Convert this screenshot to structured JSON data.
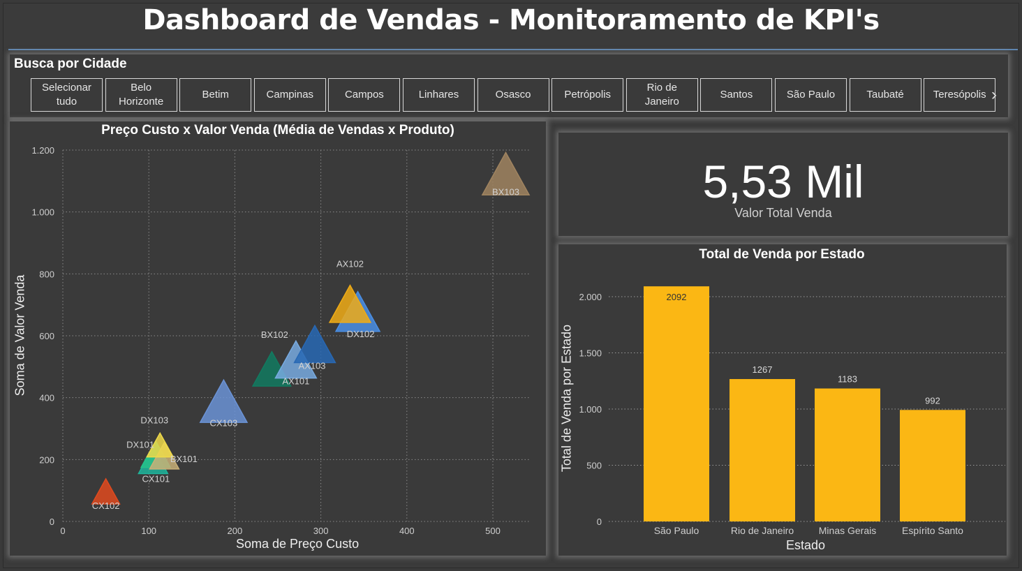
{
  "header": {
    "title": "Dashboard de Vendas - Monitoramento de KPI's"
  },
  "slicer": {
    "title": "Busca por Cidade",
    "items": [
      "Selecionar tudo",
      "Belo Horizonte",
      "Betim",
      "Campinas",
      "Campos",
      "Linhares",
      "Osasco",
      "Petrópolis",
      "Rio de Janeiro",
      "Santos",
      "São Paulo",
      "Taubaté",
      "Teresópolis"
    ],
    "next_icon": "chevron-right-icon"
  },
  "kpi": {
    "value": "5,53 Mil",
    "label": "Valor Total Venda"
  },
  "scatter": {
    "title": "Preço Custo x Valor Venda (Média de Vendas x Produto)",
    "xlabel": "Soma de Preço Custo",
    "ylabel": "Soma de Valor Venda"
  },
  "bars": {
    "title": "Total de Venda por Estado",
    "xlabel": "Estado",
    "ylabel": "Total de Venda por Estado"
  },
  "chart_data": [
    {
      "type": "scatter",
      "marker": "triangle",
      "xlim": [
        0,
        540
      ],
      "ylim": [
        0,
        1200
      ],
      "xticks": [
        0,
        100,
        200,
        300,
        400,
        500
      ],
      "xtick_labels": [
        "0",
        "100",
        "200",
        "300",
        "400",
        "500"
      ],
      "yticks": [
        0,
        200,
        400,
        600,
        800,
        1000,
        1200
      ],
      "ytick_labels": [
        "0",
        "200",
        "400",
        "600",
        "800",
        "1.000",
        "1.200"
      ],
      "grid": true,
      "points": [
        {
          "label": "CX102",
          "x": 50,
          "y": 95,
          "color": "#e04a1f"
        },
        {
          "label": "CX101",
          "x": 105,
          "y": 195,
          "color": "#1fb59c"
        },
        {
          "label": "DX101",
          "x": 108,
          "y": 215,
          "color": "#26c08a"
        },
        {
          "label": "BX101",
          "x": 118,
          "y": 210,
          "color": "#c9b078"
        },
        {
          "label": "DX103",
          "x": 113,
          "y": 245,
          "color": "#efd94a"
        },
        {
          "label": "CX103",
          "x": 187,
          "y": 385,
          "color": "#6b93d6"
        },
        {
          "label": "BX102",
          "x": 243,
          "y": 490,
          "color": "#127a60"
        },
        {
          "label": "AX101",
          "x": 271,
          "y": 520,
          "color": "#78aae0"
        },
        {
          "label": "AX103",
          "x": 293,
          "y": 570,
          "color": "#2868b4"
        },
        {
          "label": "DX102",
          "x": 343,
          "y": 675,
          "color": "#4a8fe6"
        },
        {
          "label": "AX102",
          "x": 334,
          "y": 700,
          "color": "#f0ac16"
        },
        {
          "label": "BX103",
          "x": 515,
          "y": 1120,
          "color": "#a08460"
        }
      ]
    },
    {
      "type": "bar",
      "categories": [
        "São Paulo",
        "Rio de Janeiro",
        "Minas Gerais",
        "Espírito Santo"
      ],
      "values": [
        2092,
        1267,
        1183,
        992
      ],
      "value_labels": [
        "2092",
        "1267",
        "1183",
        "992"
      ],
      "ylim": [
        0,
        2150
      ],
      "yticks": [
        0,
        500,
        1000,
        1500,
        2000
      ],
      "ytick_labels": [
        "0",
        "500",
        "1.000",
        "1.500",
        "2.000"
      ],
      "color": "#fbb714",
      "grid": true
    }
  ]
}
